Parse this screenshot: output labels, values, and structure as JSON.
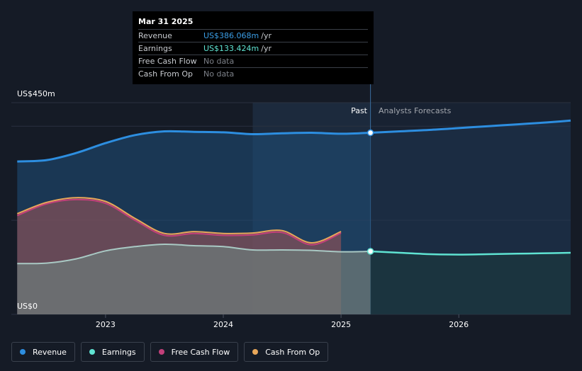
{
  "tooltip": {
    "date": "Mar 31 2025",
    "rows": [
      {
        "label": "Revenue",
        "value": "US$386.068m",
        "unit": "/yr",
        "color": "#3b9ee6"
      },
      {
        "label": "Earnings",
        "value": "US$133.424m",
        "unit": "/yr",
        "color": "#5fe3d2"
      },
      {
        "label": "Free Cash Flow",
        "value": "No data",
        "unit": "",
        "color": "#7c8088"
      },
      {
        "label": "Cash From Op",
        "value": "No data",
        "unit": "",
        "color": "#7c8088"
      }
    ]
  },
  "legend": [
    {
      "label": "Revenue",
      "color": "#2d8ee0"
    },
    {
      "label": "Earnings",
      "color": "#5fe3d2"
    },
    {
      "label": "Free Cash Flow",
      "color": "#c2407a"
    },
    {
      "label": "Cash From Op",
      "color": "#e8a75a"
    }
  ],
  "chart_data": {
    "type": "area",
    "y_top_label": "US$450m",
    "y_bottom_label": "US$0",
    "ylim": [
      0,
      450
    ],
    "xlim": [
      2022.2,
      2026.95
    ],
    "x_ticks": [
      2023,
      2024,
      2025,
      2026
    ],
    "x_tick_labels": [
      "2023",
      "2024",
      "2025",
      "2026"
    ],
    "past_label": "Past",
    "forecast_label": "Analysts Forecasts",
    "divider_x": 2025.25,
    "highlight_start_x": 2024.25,
    "grid": true,
    "series": [
      {
        "name": "Revenue",
        "color": "#2d8ee0",
        "x": [
          2022.25,
          2022.5,
          2022.75,
          2023.0,
          2023.25,
          2023.5,
          2023.75,
          2024.0,
          2024.25,
          2024.5,
          2024.75,
          2025.0,
          2025.25
        ],
        "y": [
          325,
          328,
          343,
          364,
          381,
          389,
          388,
          387,
          383,
          385,
          386,
          384,
          386
        ],
        "forecast_x": [
          2025.25,
          2025.5,
          2025.75,
          2026.0,
          2026.25,
          2026.5,
          2026.75,
          2026.95
        ],
        "forecast_y": [
          386,
          389,
          392,
          396,
          400,
          404,
          408,
          412
        ]
      },
      {
        "name": "Earnings",
        "color": "#5fe3d2",
        "x": [
          2022.25,
          2022.5,
          2022.75,
          2023.0,
          2023.25,
          2023.5,
          2023.75,
          2024.0,
          2024.25,
          2024.5,
          2024.75,
          2025.0,
          2025.25
        ],
        "y": [
          108,
          109,
          118,
          135,
          144,
          149,
          146,
          144,
          137,
          137,
          136,
          133,
          134
        ],
        "forecast_x": [
          2025.25,
          2025.5,
          2025.75,
          2026.0,
          2026.25,
          2026.5,
          2026.75,
          2026.95
        ],
        "forecast_y": [
          134,
          131,
          128,
          127,
          128,
          129,
          130,
          131
        ]
      },
      {
        "name": "Free Cash Flow",
        "color": "#c2407a",
        "x": [
          2022.25,
          2022.5,
          2022.75,
          2023.0,
          2023.25,
          2023.5,
          2023.75,
          2024.0,
          2024.25,
          2024.5,
          2024.75,
          2025.0
        ],
        "y": [
          210,
          235,
          244,
          236,
          200,
          168,
          172,
          168,
          169,
          174,
          148,
          173
        ]
      },
      {
        "name": "Cash From Op",
        "color": "#e8a75a",
        "x": [
          2022.25,
          2022.5,
          2022.75,
          2023.0,
          2023.25,
          2023.5,
          2023.75,
          2024.0,
          2024.25,
          2024.5,
          2024.75,
          2025.0
        ],
        "y": [
          214,
          238,
          248,
          240,
          204,
          172,
          176,
          172,
          173,
          178,
          152,
          176
        ]
      }
    ]
  }
}
